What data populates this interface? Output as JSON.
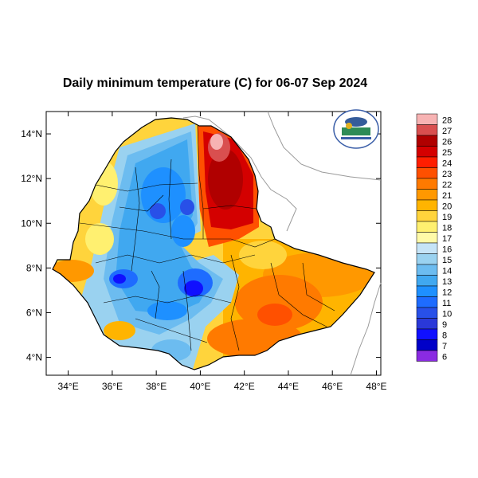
{
  "map": {
    "title": "Daily minimum temperature (C) for 06-07 Sep 2024",
    "x_ticks": [
      "34°E",
      "36°E",
      "38°E",
      "40°E",
      "42°E",
      "44°E",
      "46°E",
      "48°E"
    ],
    "y_ticks": [
      "4°N",
      "6°N",
      "8°N",
      "10°N",
      "12°N",
      "14°N"
    ],
    "x_range": [
      33.0,
      48.2
    ],
    "y_range": [
      3.2,
      15.0
    ],
    "logo": {
      "name": "Ethiopian Meteorology Institute logo",
      "text": "Ethiopian Meteorology Institute"
    }
  },
  "legend": {
    "levels": [
      "28",
      "27",
      "26",
      "25",
      "24",
      "23",
      "22",
      "21",
      "20",
      "19",
      "18",
      "17",
      "16",
      "15",
      "14",
      "13",
      "12",
      "11",
      "10",
      "9",
      "8",
      "7",
      "6"
    ],
    "colors": [
      "#f7b3b3",
      "#d94f4f",
      "#b00000",
      "#d40000",
      "#ff1e00",
      "#ff5000",
      "#ff7a00",
      "#ff9800",
      "#ffb400",
      "#ffd43c",
      "#fff070",
      "#fffaa8",
      "#c6e4f7",
      "#9ad2f0",
      "#6cbcf0",
      "#40a8f0",
      "#1e90ff",
      "#1e6cff",
      "#2850e8",
      "#2a38d8",
      "#1010ff",
      "#0000c8",
      "#8a2be2"
    ]
  }
}
